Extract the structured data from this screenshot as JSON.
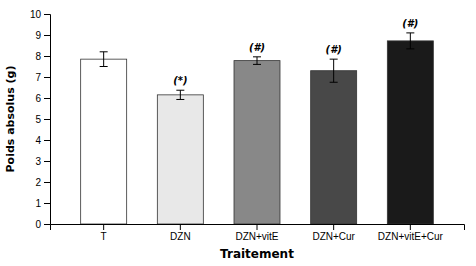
{
  "chart_data": {
    "type": "bar",
    "categories": [
      "T",
      "DZN",
      "DZN+vitE",
      "DZN+Cur",
      "DZN+vitE+Cur"
    ],
    "values": [
      7.85,
      6.15,
      7.78,
      7.3,
      8.72
    ],
    "errors": [
      0.35,
      0.22,
      0.18,
      0.55,
      0.38
    ],
    "annotations": [
      null,
      "(*)",
      "(#)",
      "(#)",
      "(#)"
    ],
    "colors": [
      "white",
      "#e8e8e8",
      "#888888",
      "#484848",
      "#1a1a1a"
    ],
    "ylabel": "Poids absolus (g)",
    "xlabel": "Traitement",
    "ylim": [
      0,
      10
    ],
    "yticks": [
      0,
      1,
      2,
      3,
      4,
      5,
      6,
      7,
      8,
      9,
      10
    ],
    "grid": false
  }
}
